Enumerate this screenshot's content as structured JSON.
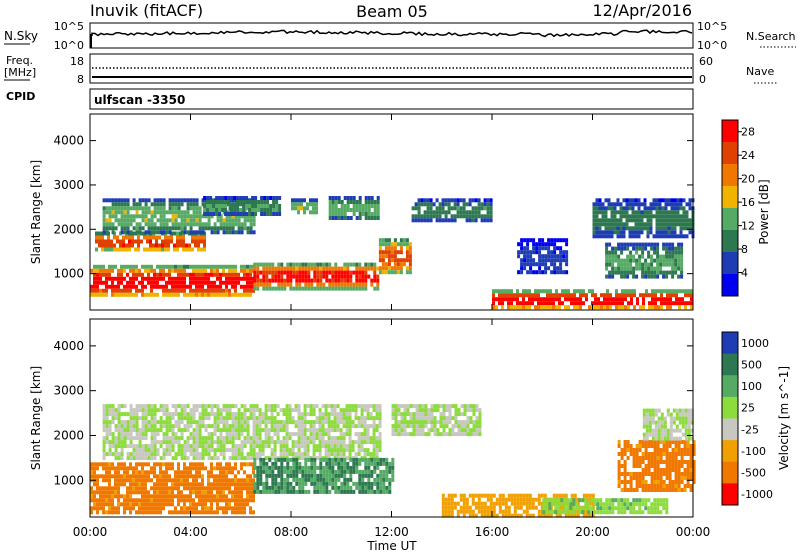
{
  "header": {
    "station": "Inuvik (fitACF)",
    "beam": "Beam 05",
    "date": "12/Apr/2016"
  },
  "nsky_panel": {
    "left_label": "N.Sky",
    "ticks": [
      "10^5",
      "10^0"
    ],
    "right_ticks": [
      "10^5",
      "10^0"
    ],
    "right_label": "N.Search"
  },
  "freq_panel": {
    "left_label_1": "Freq.",
    "left_label_2": "[MHz]",
    "left_ticks": [
      "18",
      "8"
    ],
    "right_ticks": [
      "60",
      "0"
    ],
    "right_label": "Nave"
  },
  "cpid_panel": {
    "label": "CPID",
    "program": "ulfscan -3350"
  },
  "time_axis": {
    "ticks": [
      "00:00",
      "04:00",
      "08:00",
      "12:00",
      "16:00",
      "20:00",
      "00:00"
    ],
    "label": "Time UT"
  },
  "colors": {
    "power": [
      "#0000f0",
      "#1e3cb4",
      "#2d7850",
      "#55aa64",
      "#f0b400",
      "#f07800",
      "#e04000",
      "#ff0000"
    ],
    "velocity": [
      "#1e3cb4",
      "#2d7850",
      "#55aa64",
      "#8cdc3c",
      "#c8c8c0",
      "#f0a000",
      "#f07800",
      "#ff0000"
    ]
  },
  "chart_data": [
    {
      "type": "heatmap",
      "name": "power-panel",
      "ylabel": "Slant Range [km]",
      "xlabel": "",
      "y_ticks": [
        "1000",
        "2000",
        "3000",
        "4000"
      ],
      "ylim": [
        180,
        4600
      ],
      "xlim_hours": [
        0,
        24
      ],
      "colorbar": {
        "label": "Power [dB]",
        "ticks": [
          "4",
          "8",
          "12",
          "16",
          "20",
          "24",
          "28"
        ],
        "range": [
          0,
          30
        ]
      },
      "bands": [
        {
          "t0": 0.0,
          "t1": 6.5,
          "r0": 500,
          "r1": 1200,
          "v": 28
        },
        {
          "t0": 6.5,
          "t1": 11.5,
          "r0": 700,
          "r1": 1250,
          "v": 27
        },
        {
          "t0": 0.2,
          "t1": 4.5,
          "r0": 1550,
          "r1": 1950,
          "v": 25
        },
        {
          "t0": 0.5,
          "t1": 6.5,
          "r0": 1950,
          "r1": 2700,
          "v": 14
        },
        {
          "t0": 4.5,
          "t1": 7.5,
          "r0": 2350,
          "r1": 2750,
          "v": 11
        },
        {
          "t0": 8.0,
          "t1": 9.0,
          "r0": 2350,
          "r1": 2700,
          "v": 14
        },
        {
          "t0": 9.5,
          "t1": 11.5,
          "r0": 2250,
          "r1": 2750,
          "v": 13
        },
        {
          "t0": 11.5,
          "t1": 12.8,
          "r0": 1000,
          "r1": 1800,
          "v": 23
        },
        {
          "t0": 12.8,
          "t1": 16.0,
          "r0": 2200,
          "r1": 2700,
          "v": 10
        },
        {
          "t0": 16.0,
          "t1": 24.0,
          "r0": 250,
          "r1": 650,
          "v": 29
        },
        {
          "t0": 17.0,
          "t1": 19.0,
          "r0": 1000,
          "r1": 1800,
          "v": 5
        },
        {
          "t0": 20.5,
          "t1": 23.5,
          "r0": 900,
          "r1": 1700,
          "v": 12
        },
        {
          "t0": 20.0,
          "t1": 24.0,
          "r0": 1800,
          "r1": 2700,
          "v": 9
        }
      ]
    },
    {
      "type": "heatmap",
      "name": "velocity-panel",
      "ylabel": "Slant Range [km]",
      "xlabel": "Time UT",
      "y_ticks": [
        "1000",
        "2000",
        "3000",
        "4000"
      ],
      "ylim": [
        180,
        4600
      ],
      "xlim_hours": [
        0,
        24
      ],
      "colorbar": {
        "label": "Velocity [m s^-1]",
        "ticks": [
          "1000",
          "500",
          "100",
          "25",
          "-25",
          "-100",
          "-500",
          "-1000"
        ],
        "range": [
          -1000,
          1000
        ]
      },
      "bands": [
        {
          "t0": 0.0,
          "t1": 6.5,
          "r0": 300,
          "r1": 1400,
          "v": -400
        },
        {
          "t0": 0.5,
          "t1": 11.5,
          "r0": 1500,
          "r1": 2700,
          "v": 0
        },
        {
          "t0": 6.5,
          "t1": 12.0,
          "r0": 700,
          "r1": 1500,
          "v": 300
        },
        {
          "t0": 12.0,
          "t1": 15.5,
          "r0": 2000,
          "r1": 2700,
          "v": 0
        },
        {
          "t0": 14.0,
          "t1": 20.0,
          "r0": 250,
          "r1": 700,
          "v": -200
        },
        {
          "t0": 18.0,
          "t1": 23.0,
          "r0": 250,
          "r1": 600,
          "v": 50
        },
        {
          "t0": 21.0,
          "t1": 24.0,
          "r0": 800,
          "r1": 1900,
          "v": -400
        },
        {
          "t0": 22.0,
          "t1": 24.0,
          "r0": 1900,
          "r1": 2600,
          "v": 0
        }
      ]
    }
  ]
}
